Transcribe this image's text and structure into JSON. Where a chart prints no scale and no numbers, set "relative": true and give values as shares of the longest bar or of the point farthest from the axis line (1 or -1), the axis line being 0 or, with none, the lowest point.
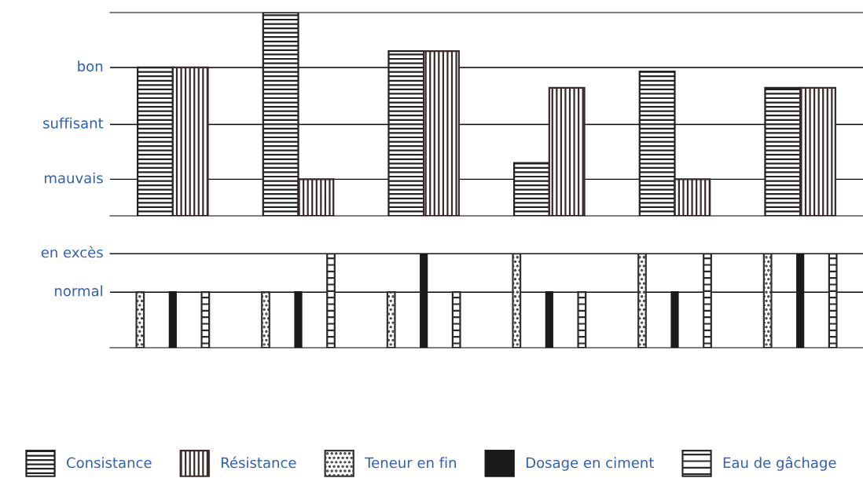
{
  "chart_data": [
    {
      "type": "bar",
      "relative": true,
      "categories": [
        null,
        null,
        null,
        null,
        null,
        null
      ],
      "series": [
        {
          "name": "Consistance",
          "color": "#222222",
          "values": [
            0.73,
            1,
            0.81,
            0.26,
            0.71,
            0.63
          ]
        },
        {
          "name": "Résistance",
          "color": "#3a2a2a",
          "values": [
            0.73,
            0.18,
            0.81,
            0.63,
            0.18,
            0.63
          ]
        }
      ],
      "ref_lines": [
        {
          "axis": "y",
          "value": 0.18,
          "label": "mauvais"
        },
        {
          "axis": "y",
          "value": 0.45,
          "label": "suffisant"
        },
        {
          "axis": "y",
          "value": 0.73,
          "label": "bon"
        }
      ],
      "legend": "bottom"
    },
    {
      "type": "bar",
      "relative": true,
      "categories": [
        null,
        null,
        null,
        null,
        null,
        null
      ],
      "series": [
        {
          "name": "Teneur en fin",
          "color": "#333333",
          "values": [
            0.59,
            0.59,
            0.59,
            1,
            1,
            1
          ]
        },
        {
          "name": "Dosage en ciment",
          "color": "#1a1a1a",
          "values": [
            0.59,
            0.59,
            1,
            0.59,
            0.59,
            1
          ]
        },
        {
          "name": "Eau de gâchage",
          "color": "#2a2a2a",
          "values": [
            0.59,
            1,
            0.59,
            0.59,
            1,
            1
          ]
        }
      ],
      "ref_lines": [
        {
          "axis": "y",
          "value": 0.59,
          "label": "normal"
        },
        {
          "axis": "y",
          "value": 1,
          "label": "en excès"
        }
      ],
      "legend": "bottom"
    }
  ]
}
